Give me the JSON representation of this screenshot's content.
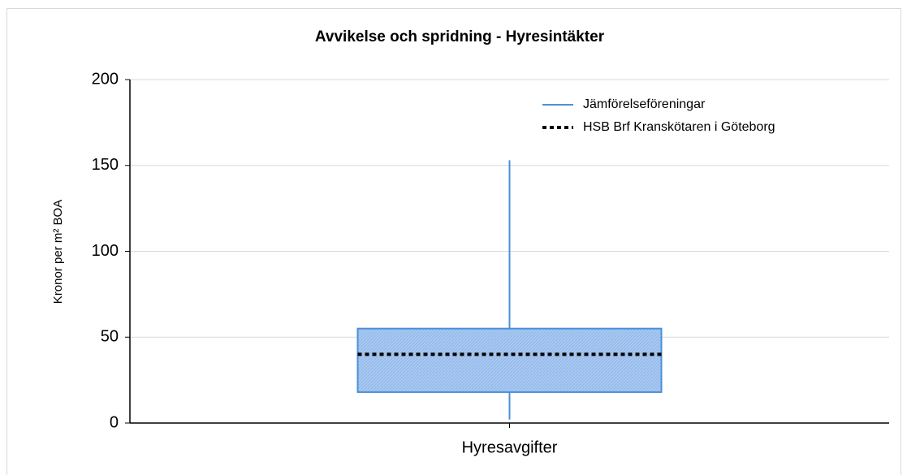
{
  "chart_data": {
    "type": "box",
    "title": "Avvikelse och spridning - Hyresintäkter",
    "ylabel": "Kronor per m² BOA",
    "categories": [
      "Hyresavgifter"
    ],
    "series": [
      {
        "name": "Jämförelseföreningar",
        "color": "#4a90d9",
        "fill": "#a9c8f0",
        "min": [
          2
        ],
        "q1": [
          18
        ],
        "q3": [
          55
        ],
        "max": [
          153
        ]
      }
    ],
    "reference": {
      "name": "HSB Brf Kranskötaren i Göteborg",
      "color": "#000000",
      "values": [
        40
      ]
    },
    "ylim": [
      0,
      200
    ],
    "yticks": [
      0,
      50,
      100,
      150,
      200
    ],
    "grid": true
  }
}
